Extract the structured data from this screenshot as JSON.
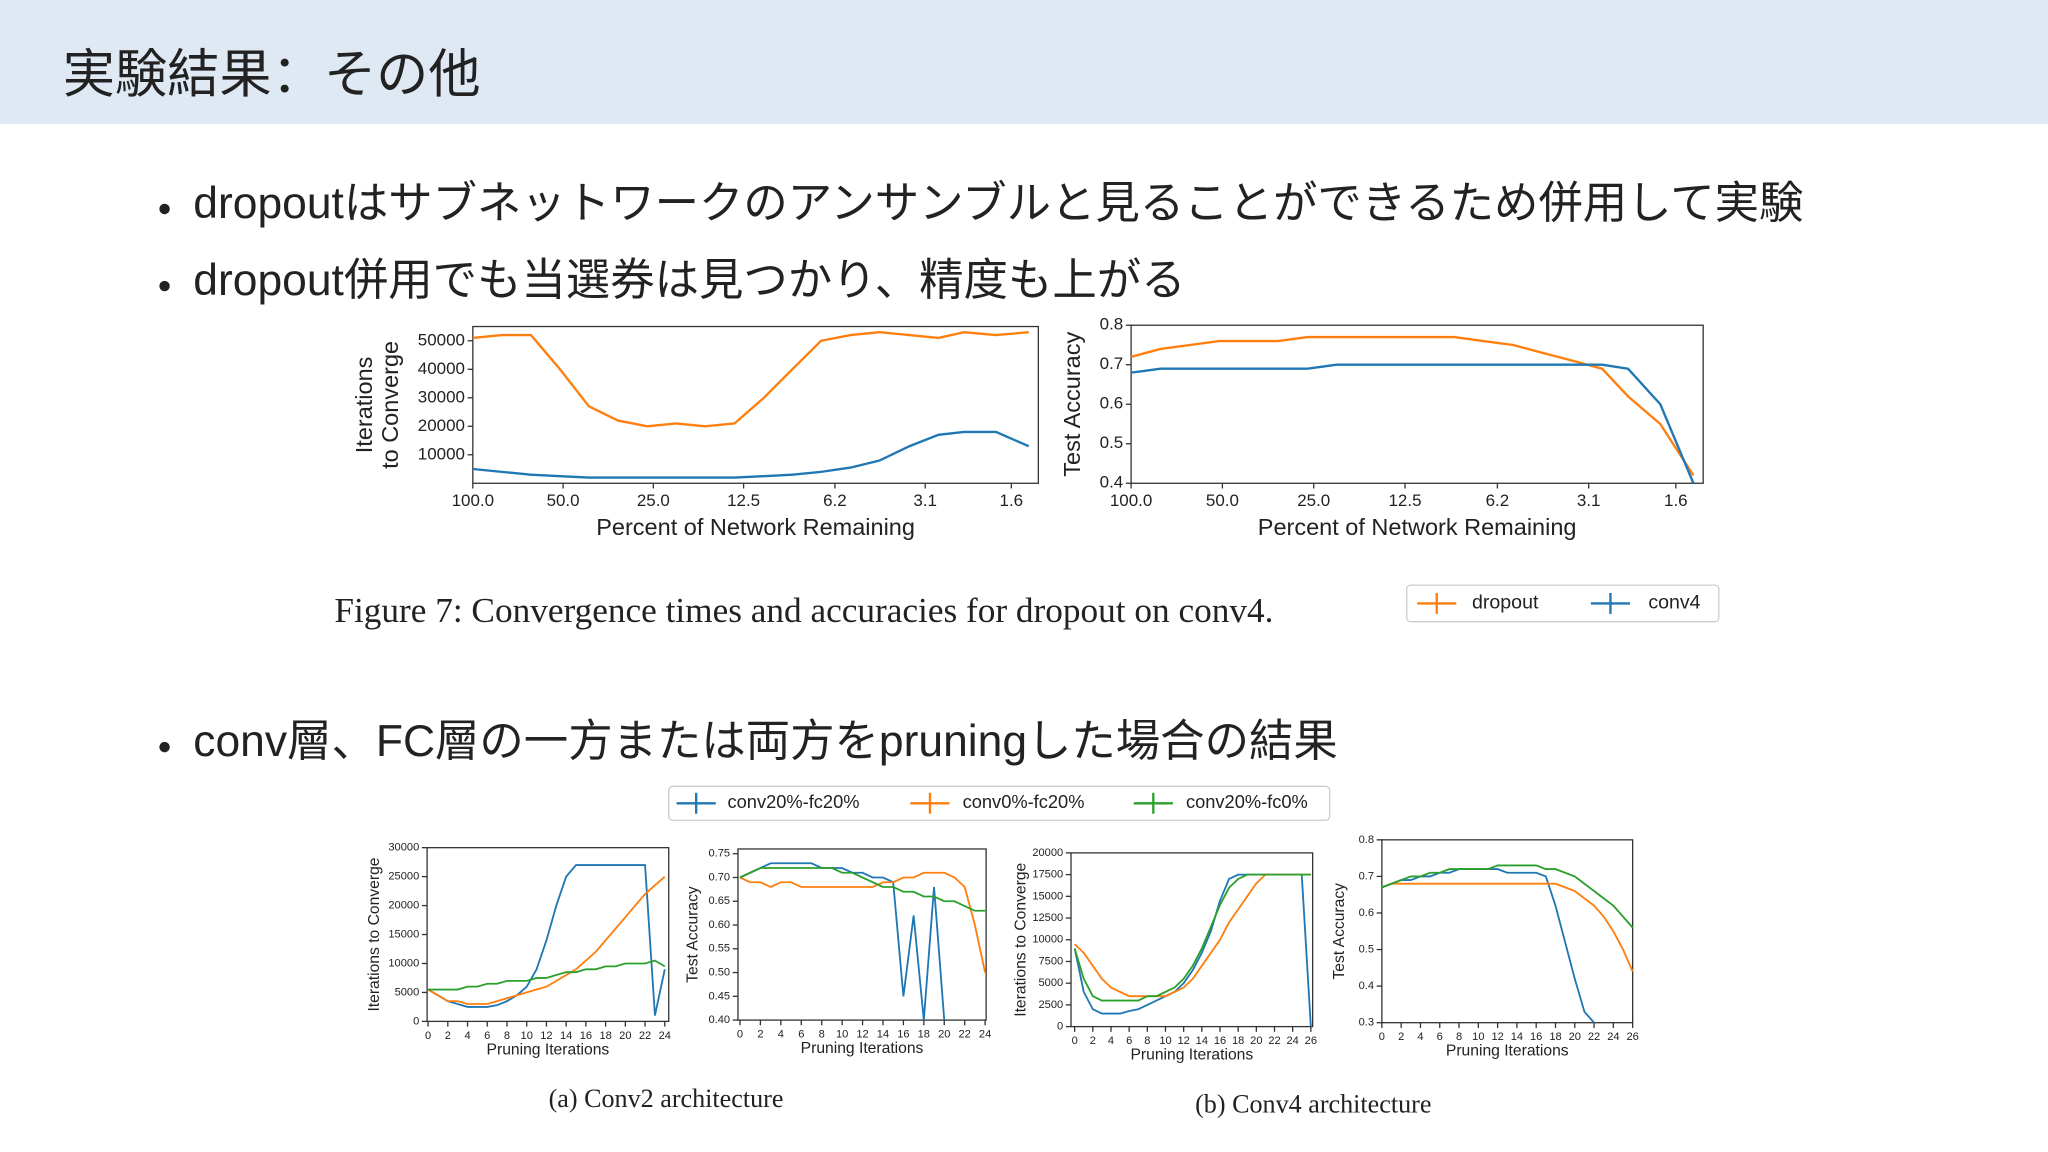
{
  "slide": {
    "title": "実験結果：その他",
    "bullets": [
      "dropoutはサブネットワークのアンサンブルと見ることができるため併用して実験",
      "dropout併用でも当選券は見つかり、精度も上がる",
      "conv層、FC層の一方または両方をpruningした場合の結果"
    ],
    "captions": [
      "Figure 7: Convergence times and accuracies for dropout on conv4.",
      "(a) Conv2 architecture",
      "(b) Conv4 architecture"
    ]
  },
  "chart_data": [
    {
      "type": "line",
      "xscale": "log",
      "xlabel": "Percent of Network Remaining",
      "ylabel": [
        "Iterations",
        "to Converge"
      ],
      "x": [
        100,
        80,
        64,
        51.2,
        41,
        32.8,
        26.2,
        21,
        16.8,
        13.4,
        10.7,
        8.6,
        6.9,
        5.5,
        4.4,
        3.5,
        2.8,
        2.3,
        1.8,
        1.4
      ],
      "xlim": [
        100,
        1.3
      ],
      "xticks": [
        {
          "value": 100,
          "label": "100.0"
        },
        {
          "value": 50,
          "label": "50.0"
        },
        {
          "value": 25,
          "label": "25.0"
        },
        12.5,
        6.2,
        3.1,
        1.6
      ],
      "ylim": [
        0,
        55000
      ],
      "yticks": [
        10000,
        20000,
        30000,
        40000,
        50000
      ],
      "series": [
        {
          "name": "dropout",
          "color": "#ff7f0e",
          "values": [
            51000,
            52000,
            52000,
            40000,
            27000,
            22000,
            20000,
            21000,
            20000,
            21000,
            30000,
            40000,
            50000,
            52000,
            53000,
            52000,
            51000,
            53000,
            52000,
            53000
          ]
        },
        {
          "name": "conv4",
          "color": "#1f77b4",
          "values": [
            5000,
            4000,
            3000,
            2500,
            2000,
            2000,
            2000,
            2000,
            2000,
            2000,
            2500,
            3000,
            4000,
            5500,
            8000,
            13000,
            17000,
            18000,
            18000,
            13000
          ]
        }
      ]
    },
    {
      "type": "line",
      "xscale": "log",
      "xlabel": "Percent of Network Remaining",
      "ylabel": [
        "Test Accuracy"
      ],
      "x": [
        100,
        80,
        64,
        51.2,
        41,
        32.8,
        26.2,
        21,
        16.8,
        13.4,
        10.7,
        8.6,
        6.9,
        5.5,
        4.4,
        3.5,
        2.8,
        2.3,
        1.8,
        1.4
      ],
      "xlim": [
        100,
        1.3
      ],
      "xticks": [
        {
          "value": 100,
          "label": "100.0"
        },
        {
          "value": 50,
          "label": "50.0"
        },
        {
          "value": 25,
          "label": "25.0"
        },
        12.5,
        6.2,
        3.1,
        1.6
      ],
      "ylim": [
        0.4,
        0.8
      ],
      "yticks": [
        0.4,
        0.5,
        0.6,
        0.7,
        0.8
      ],
      "series": [
        {
          "color": "#ff7f0e",
          "values": [
            0.72,
            0.74,
            0.75,
            0.76,
            0.76,
            0.76,
            0.77,
            0.77,
            0.77,
            0.77,
            0.77,
            0.77,
            0.76,
            0.75,
            0.73,
            0.71,
            0.69,
            0.62,
            0.55,
            0.42
          ]
        },
        {
          "color": "#1f77b4",
          "values": [
            0.68,
            0.69,
            0.69,
            0.69,
            0.69,
            0.69,
            0.69,
            0.7,
            0.7,
            0.7,
            0.7,
            0.7,
            0.7,
            0.7,
            0.7,
            0.7,
            0.7,
            0.69,
            0.6,
            0.4
          ]
        }
      ]
    },
    {
      "type": "line",
      "xlabel": "Pruning Iterations",
      "ylabel": [
        "Iterations to Converge"
      ],
      "x": [
        0,
        1,
        2,
        3,
        4,
        5,
        6,
        7,
        8,
        9,
        10,
        11,
        12,
        13,
        14,
        15,
        16,
        17,
        18,
        19,
        20,
        21,
        22,
        23,
        24
      ],
      "xlim": [
        -0.1,
        24.4
      ],
      "xticks": [
        0,
        2,
        4,
        6,
        8,
        10,
        12,
        14,
        16,
        18,
        20,
        22,
        24
      ],
      "ylim": [
        0,
        30000
      ],
      "yticks": [
        0,
        5000,
        10000,
        15000,
        20000,
        25000,
        30000
      ],
      "series": [
        {
          "name": "conv20%-fc20%",
          "color": "#1f77b4",
          "values": [
            5500,
            4500,
            3500,
            3000,
            2500,
            2500,
            2500,
            2800,
            3500,
            4500,
            6000,
            9000,
            14000,
            20000,
            25000,
            27000,
            27000,
            27000,
            27000,
            27000,
            27000,
            27000,
            27000,
            1000,
            9000
          ]
        },
        {
          "name": "conv0%-fc20%",
          "color": "#ff7f0e",
          "values": [
            5500,
            4500,
            3500,
            3500,
            3000,
            3000,
            3000,
            3500,
            4000,
            4500,
            5000,
            5500,
            6000,
            7000,
            8000,
            9000,
            10500,
            12000,
            14000,
            16000,
            18000,
            20000,
            22000,
            23500,
            25000
          ]
        },
        {
          "name": "conv20%-fc0%",
          "color": "#2ca02c",
          "values": [
            5500,
            5500,
            5500,
            5500,
            6000,
            6000,
            6500,
            6500,
            7000,
            7000,
            7000,
            7500,
            7500,
            8000,
            8500,
            8500,
            9000,
            9000,
            9500,
            9500,
            10000,
            10000,
            10000,
            10500,
            9500
          ]
        }
      ]
    },
    {
      "type": "line",
      "xlabel": "Pruning Iterations",
      "ylabel": [
        "Test Accuracy"
      ],
      "x": [
        0,
        1,
        2,
        3,
        4,
        5,
        6,
        7,
        8,
        9,
        10,
        11,
        12,
        13,
        14,
        15,
        16,
        17,
        18,
        19,
        20,
        21,
        22,
        23,
        24
      ],
      "xlim": [
        -0.2,
        24.1
      ],
      "xticks": [
        0,
        2,
        4,
        6,
        8,
        10,
        12,
        14,
        16,
        18,
        20,
        22,
        24
      ],
      "ylim": [
        0.4,
        0.76
      ],
      "yticks": [
        {
          "value": 0.4,
          "label": "0.40"
        },
        0.45,
        {
          "value": 0.5,
          "label": "0.50"
        },
        0.55,
        {
          "value": 0.6,
          "label": "0.60"
        },
        0.65,
        {
          "value": 0.7,
          "label": "0.70"
        },
        0.75
      ],
      "series": [
        {
          "color": "#1f77b4",
          "values": [
            0.7,
            0.71,
            0.72,
            0.73,
            0.73,
            0.73,
            0.73,
            0.73,
            0.72,
            0.72,
            0.72,
            0.71,
            0.71,
            0.7,
            0.7,
            0.69,
            0.45,
            0.62,
            0.4,
            0.68,
            0.4,
            null,
            null,
            null,
            null
          ]
        },
        {
          "color": "#ff7f0e",
          "values": [
            0.7,
            0.69,
            0.69,
            0.68,
            0.69,
            0.69,
            0.68,
            0.68,
            0.68,
            0.68,
            0.68,
            0.68,
            0.68,
            0.68,
            0.69,
            0.69,
            0.7,
            0.7,
            0.71,
            0.71,
            0.71,
            0.7,
            0.68,
            0.6,
            0.5
          ]
        },
        {
          "color": "#2ca02c",
          "values": [
            0.7,
            0.71,
            0.72,
            0.72,
            0.72,
            0.72,
            0.72,
            0.72,
            0.72,
            0.72,
            0.71,
            0.71,
            0.7,
            0.69,
            0.68,
            0.68,
            0.67,
            0.67,
            0.66,
            0.66,
            0.65,
            0.65,
            0.64,
            0.63,
            0.63
          ]
        }
      ]
    },
    {
      "type": "line",
      "xlabel": "Pruning Iterations",
      "ylabel": [
        "Iterations to Converge"
      ],
      "x": [
        0,
        1,
        2,
        3,
        4,
        5,
        6,
        7,
        8,
        9,
        10,
        11,
        12,
        13,
        14,
        15,
        16,
        17,
        18,
        19,
        20,
        21,
        22,
        23,
        24,
        25,
        26
      ],
      "xlim": [
        -0.4,
        26.2
      ],
      "xticks": [
        0,
        2,
        4,
        6,
        8,
        10,
        12,
        14,
        16,
        18,
        20,
        22,
        24,
        26
      ],
      "ylim": [
        0,
        20000
      ],
      "yticks": [
        0,
        2500,
        5000,
        7500,
        10000,
        12500,
        15000,
        17500,
        20000
      ],
      "series": [
        {
          "color": "#1f77b4",
          "values": [
            9000,
            4000,
            2000,
            1500,
            1500,
            1500,
            1800,
            2000,
            2500,
            3000,
            3500,
            4000,
            5000,
            6500,
            8500,
            11000,
            14500,
            17000,
            17500,
            17500,
            17500,
            17500,
            17500,
            17500,
            17500,
            17500,
            0
          ]
        },
        {
          "color": "#ff7f0e",
          "values": [
            9500,
            8500,
            7000,
            5500,
            4500,
            4000,
            3500,
            3500,
            3500,
            3500,
            3500,
            4000,
            4500,
            5500,
            7000,
            8500,
            10000,
            12000,
            13500,
            15000,
            16500,
            17500,
            17500,
            17500,
            17500,
            17500,
            17500
          ]
        },
        {
          "color": "#2ca02c",
          "values": [
            9000,
            5500,
            3500,
            3000,
            3000,
            3000,
            3000,
            3000,
            3500,
            3500,
            4000,
            4500,
            5500,
            7000,
            9000,
            11500,
            14000,
            16000,
            17000,
            17500,
            17500,
            17500,
            17500,
            17500,
            17500,
            17500,
            17500
          ]
        }
      ]
    },
    {
      "type": "line",
      "xlabel": "Pruning Iterations",
      "ylabel": [
        "Test Accuracy"
      ],
      "x": [
        0,
        1,
        2,
        3,
        4,
        5,
        6,
        7,
        8,
        9,
        10,
        11,
        12,
        13,
        14,
        15,
        16,
        17,
        18,
        19,
        20,
        21,
        22,
        23,
        24,
        25,
        26
      ],
      "xlim": [
        0,
        26
      ],
      "xticks": [
        0,
        2,
        4,
        6,
        8,
        10,
        12,
        14,
        16,
        18,
        20,
        22,
        24,
        26
      ],
      "ylim": [
        0.3,
        0.8
      ],
      "yticks": [
        0.3,
        0.4,
        0.5,
        0.6,
        0.7,
        0.8
      ],
      "series": [
        {
          "color": "#1f77b4",
          "values": [
            0.67,
            0.68,
            0.69,
            0.69,
            0.7,
            0.7,
            0.71,
            0.71,
            0.72,
            0.72,
            0.72,
            0.72,
            0.72,
            0.71,
            0.71,
            0.71,
            0.71,
            0.7,
            0.62,
            0.52,
            0.42,
            0.33,
            0.3,
            null,
            null,
            null,
            null
          ]
        },
        {
          "color": "#ff7f0e",
          "values": [
            0.67,
            0.68,
            0.68,
            0.68,
            0.68,
            0.68,
            0.68,
            0.68,
            0.68,
            0.68,
            0.68,
            0.68,
            0.68,
            0.68,
            0.68,
            0.68,
            0.68,
            0.68,
            0.68,
            0.67,
            0.66,
            0.64,
            0.62,
            0.59,
            0.55,
            0.5,
            0.44
          ]
        },
        {
          "color": "#2ca02c",
          "values": [
            0.67,
            0.68,
            0.69,
            0.7,
            0.7,
            0.71,
            0.71,
            0.72,
            0.72,
            0.72,
            0.72,
            0.72,
            0.73,
            0.73,
            0.73,
            0.73,
            0.73,
            0.72,
            0.72,
            0.71,
            0.7,
            0.68,
            0.66,
            0.64,
            0.62,
            0.59,
            0.56
          ]
        }
      ]
    }
  ]
}
